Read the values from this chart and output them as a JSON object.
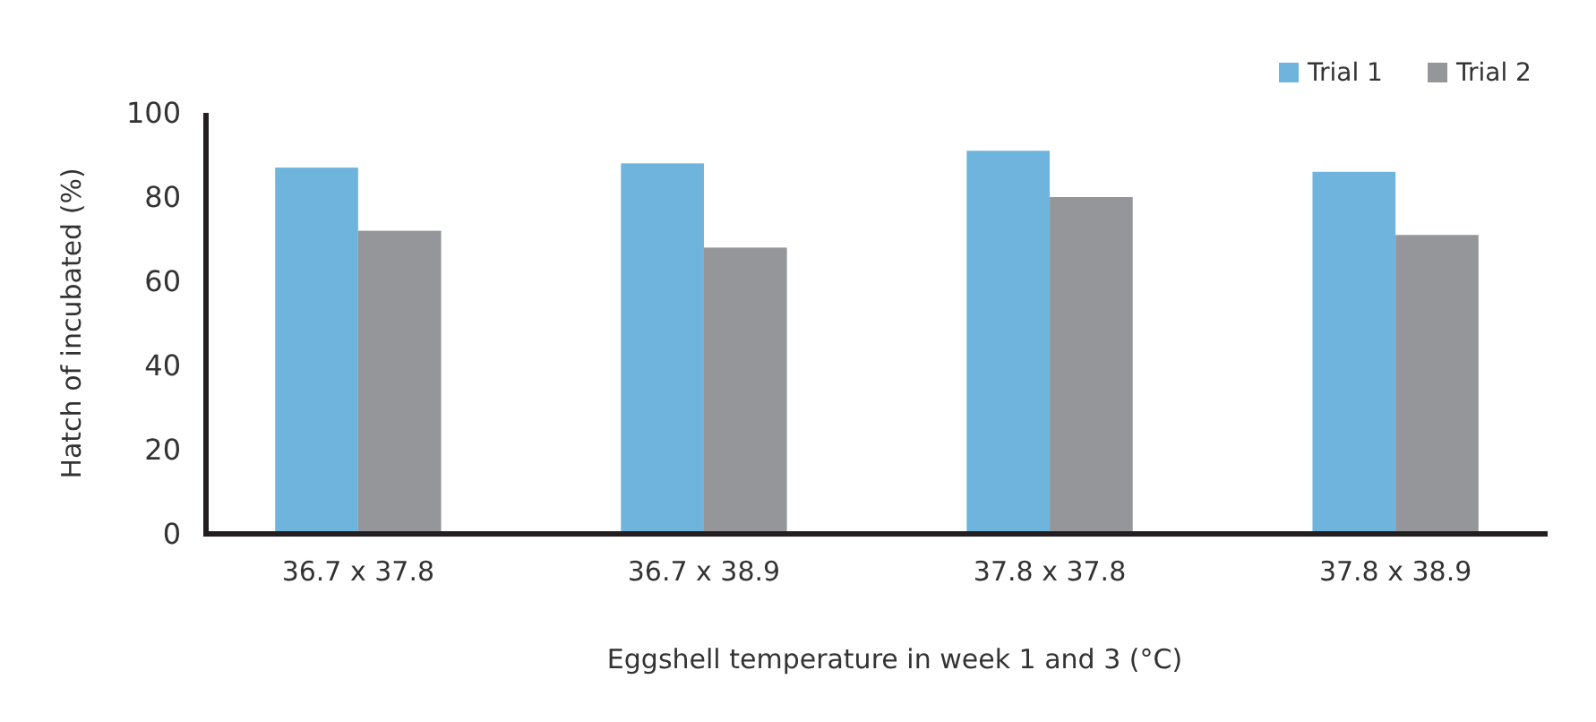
{
  "chart_data": {
    "type": "bar",
    "xlabel": "Eggshell temperature in week 1 and 3 (°C)",
    "ylabel": "Hatch of incubated (%)",
    "categories": [
      "36.7 x 37.8",
      "36.7 x 38.9",
      "37.8 x 37.8",
      "37.8 x 38.9"
    ],
    "series": [
      {
        "name": "Trial 1",
        "color": "#6eb4dd",
        "values": [
          87,
          88,
          91,
          86
        ]
      },
      {
        "name": "Trial 2",
        "color": "#959699",
        "values": [
          72,
          68,
          80,
          71
        ]
      }
    ],
    "ylim": [
      0,
      100
    ],
    "yticks": [
      0,
      20,
      40,
      60,
      80,
      100
    ],
    "grid": false,
    "legend": "top right"
  }
}
